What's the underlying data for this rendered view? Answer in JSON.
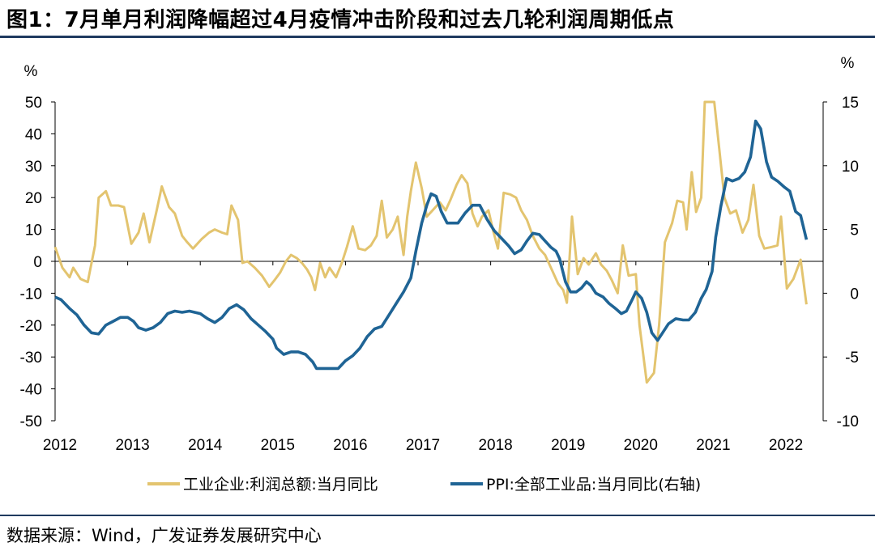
{
  "title": "图1：7月单月利润降幅超过4月疫情冲击阶段和过去几轮利润周期低点",
  "source": "数据来源：Wind，广发证券发展研究中心",
  "colors": {
    "profit": "#E3C46F",
    "ppi": "#1F6495",
    "rule": "#1f3a5f"
  },
  "chart_data": {
    "type": "line",
    "y_left": {
      "label": "%",
      "min": -50,
      "max": 50,
      "ticks": [
        "50",
        "40",
        "30",
        "20",
        "10",
        "0",
        "-10",
        "-20",
        "-30",
        "-40",
        "-50"
      ]
    },
    "y_right": {
      "label": "%",
      "min": -10,
      "max": 15,
      "ticks": [
        "15",
        "10",
        "5",
        "0",
        "-5",
        "-10"
      ]
    },
    "x_range": [
      2012.0,
      2022.58
    ],
    "x_ticks": [
      "2012",
      "2013",
      "2014",
      "2015",
      "2016",
      "2017",
      "2018",
      "2019",
      "2020",
      "2021",
      "2022"
    ],
    "series": [
      {
        "name": "工业企业:利润总额:当月同比",
        "axis": "left",
        "points": [
          [
            2012.0,
            4.5
          ],
          [
            2012.1,
            -2
          ],
          [
            2012.2,
            -5
          ],
          [
            2012.25,
            -2
          ],
          [
            2012.35,
            -5.5
          ],
          [
            2012.45,
            -6.5
          ],
          [
            2012.55,
            5
          ],
          [
            2012.6,
            20
          ],
          [
            2012.7,
            22
          ],
          [
            2012.77,
            17.5
          ],
          [
            2012.87,
            17.5
          ],
          [
            2012.95,
            17
          ],
          [
            2013.05,
            5.5
          ],
          [
            2013.15,
            9
          ],
          [
            2013.22,
            15
          ],
          [
            2013.3,
            6
          ],
          [
            2013.4,
            16
          ],
          [
            2013.47,
            23.5
          ],
          [
            2013.57,
            17
          ],
          [
            2013.65,
            15
          ],
          [
            2013.75,
            8
          ],
          [
            2013.82,
            6
          ],
          [
            2013.9,
            4
          ],
          [
            2014.02,
            7
          ],
          [
            2014.12,
            9
          ],
          [
            2014.2,
            10
          ],
          [
            2014.3,
            9
          ],
          [
            2014.37,
            8.5
          ],
          [
            2014.43,
            17.5
          ],
          [
            2014.52,
            13
          ],
          [
            2014.58,
            -0.5
          ],
          [
            2014.65,
            0
          ],
          [
            2014.75,
            -2
          ],
          [
            2014.85,
            -4.5
          ],
          [
            2014.95,
            -8
          ],
          [
            2015.02,
            -6
          ],
          [
            2015.1,
            -3.5
          ],
          [
            2015.18,
            0
          ],
          [
            2015.25,
            2
          ],
          [
            2015.33,
            1
          ],
          [
            2015.4,
            -0.5
          ],
          [
            2015.47,
            -2.5
          ],
          [
            2015.53,
            -5
          ],
          [
            2015.58,
            -9
          ],
          [
            2015.65,
            -0.5
          ],
          [
            2015.72,
            -5
          ],
          [
            2015.78,
            -2
          ],
          [
            2015.87,
            -5
          ],
          [
            2015.95,
            -0.5
          ],
          [
            2016.02,
            4.5
          ],
          [
            2016.1,
            11
          ],
          [
            2016.18,
            4
          ],
          [
            2016.27,
            3.5
          ],
          [
            2016.35,
            5
          ],
          [
            2016.43,
            8
          ],
          [
            2016.5,
            19
          ],
          [
            2016.57,
            7.5
          ],
          [
            2016.65,
            10
          ],
          [
            2016.72,
            14
          ],
          [
            2016.8,
            2
          ],
          [
            2016.85,
            14
          ],
          [
            2016.9,
            22
          ],
          [
            2016.97,
            31
          ],
          [
            2017.05,
            23
          ],
          [
            2017.12,
            14
          ],
          [
            2017.2,
            16
          ],
          [
            2017.3,
            18.5
          ],
          [
            2017.38,
            16
          ],
          [
            2017.45,
            19.5
          ],
          [
            2017.53,
            24
          ],
          [
            2017.6,
            27
          ],
          [
            2017.68,
            24.5
          ],
          [
            2017.75,
            15
          ],
          [
            2017.82,
            11
          ],
          [
            2017.88,
            14
          ],
          [
            2017.97,
            16
          ],
          [
            2018.03,
            10
          ],
          [
            2018.1,
            4
          ],
          [
            2018.18,
            21.5
          ],
          [
            2018.27,
            21
          ],
          [
            2018.35,
            20
          ],
          [
            2018.42,
            16
          ],
          [
            2018.5,
            13
          ],
          [
            2018.58,
            8
          ],
          [
            2018.67,
            4
          ],
          [
            2018.75,
            2
          ],
          [
            2018.83,
            -2
          ],
          [
            2018.93,
            -7
          ],
          [
            2019.0,
            -9
          ],
          [
            2019.05,
            -13
          ],
          [
            2019.12,
            14
          ],
          [
            2019.2,
            -4
          ],
          [
            2019.28,
            1
          ],
          [
            2019.35,
            -1
          ],
          [
            2019.45,
            2.5
          ],
          [
            2019.52,
            -1
          ],
          [
            2019.6,
            -3
          ],
          [
            2019.67,
            -6
          ],
          [
            2019.75,
            -10
          ],
          [
            2019.82,
            5
          ],
          [
            2019.9,
            -4.5
          ],
          [
            2020.0,
            -4
          ],
          [
            2020.05,
            -20
          ],
          [
            2020.15,
            -38
          ],
          [
            2020.25,
            -35
          ],
          [
            2020.32,
            -20
          ],
          [
            2020.4,
            6
          ],
          [
            2020.5,
            12
          ],
          [
            2020.57,
            19
          ],
          [
            2020.65,
            18.5
          ],
          [
            2020.7,
            10
          ],
          [
            2020.77,
            28
          ],
          [
            2020.83,
            15.5
          ],
          [
            2020.9,
            20
          ],
          [
            2020.95,
            50
          ],
          [
            2021.08,
            50
          ],
          [
            2021.15,
            35
          ],
          [
            2021.22,
            20
          ],
          [
            2021.3,
            15
          ],
          [
            2021.38,
            16
          ],
          [
            2021.47,
            9
          ],
          [
            2021.55,
            13
          ],
          [
            2021.62,
            24
          ],
          [
            2021.7,
            8
          ],
          [
            2021.77,
            4
          ],
          [
            2021.87,
            4.5
          ],
          [
            2021.95,
            5
          ],
          [
            2022.0,
            14
          ],
          [
            2022.08,
            -8.5
          ],
          [
            2022.17,
            -5.5
          ],
          [
            2022.27,
            0.5
          ],
          [
            2022.35,
            -13.5
          ]
        ]
      },
      {
        "name": "PPI:全部工业品:当月同比(右轴)",
        "axis": "right",
        "points": [
          [
            2012.0,
            -0.3
          ],
          [
            2012.08,
            -0.5
          ],
          [
            2012.2,
            -1.2
          ],
          [
            2012.3,
            -1.7
          ],
          [
            2012.4,
            -2.5
          ],
          [
            2012.5,
            -3.1
          ],
          [
            2012.6,
            -3.2
          ],
          [
            2012.7,
            -2.5
          ],
          [
            2012.8,
            -2.2
          ],
          [
            2012.9,
            -1.9
          ],
          [
            2013.0,
            -1.9
          ],
          [
            2013.08,
            -2.2
          ],
          [
            2013.15,
            -2.7
          ],
          [
            2013.25,
            -2.9
          ],
          [
            2013.35,
            -2.7
          ],
          [
            2013.45,
            -2.3
          ],
          [
            2013.55,
            -1.6
          ],
          [
            2013.65,
            -1.4
          ],
          [
            2013.75,
            -1.5
          ],
          [
            2013.85,
            -1.4
          ],
          [
            2014.0,
            -1.6
          ],
          [
            2014.1,
            -2
          ],
          [
            2014.2,
            -2.3
          ],
          [
            2014.3,
            -1.9
          ],
          [
            2014.4,
            -1.2
          ],
          [
            2014.5,
            -0.9
          ],
          [
            2014.6,
            -1.3
          ],
          [
            2014.7,
            -2
          ],
          [
            2014.8,
            -2.5
          ],
          [
            2014.9,
            -3
          ],
          [
            2015.0,
            -3.6
          ],
          [
            2015.05,
            -4.3
          ],
          [
            2015.15,
            -4.8
          ],
          [
            2015.25,
            -4.6
          ],
          [
            2015.35,
            -4.6
          ],
          [
            2015.45,
            -4.8
          ],
          [
            2015.55,
            -5.4
          ],
          [
            2015.6,
            -5.9
          ],
          [
            2015.7,
            -5.9
          ],
          [
            2015.8,
            -5.9
          ],
          [
            2015.9,
            -5.9
          ],
          [
            2016.0,
            -5.3
          ],
          [
            2016.1,
            -4.9
          ],
          [
            2016.2,
            -4.3
          ],
          [
            2016.3,
            -3.4
          ],
          [
            2016.4,
            -2.8
          ],
          [
            2016.5,
            -2.6
          ],
          [
            2016.6,
            -1.7
          ],
          [
            2016.7,
            -0.8
          ],
          [
            2016.8,
            0.1
          ],
          [
            2016.9,
            1.2
          ],
          [
            2016.97,
            3.3
          ],
          [
            2017.05,
            5.5
          ],
          [
            2017.12,
            6.9
          ],
          [
            2017.18,
            7.8
          ],
          [
            2017.25,
            7.6
          ],
          [
            2017.32,
            6.4
          ],
          [
            2017.4,
            5.5
          ],
          [
            2017.5,
            5.5
          ],
          [
            2017.55,
            5.5
          ],
          [
            2017.65,
            6.3
          ],
          [
            2017.75,
            6.9
          ],
          [
            2017.85,
            6.9
          ],
          [
            2017.95,
            5.8
          ],
          [
            2018.05,
            4.9
          ],
          [
            2018.15,
            4.3
          ],
          [
            2018.25,
            3.7
          ],
          [
            2018.33,
            3.1
          ],
          [
            2018.42,
            3.4
          ],
          [
            2018.5,
            4.1
          ],
          [
            2018.58,
            4.7
          ],
          [
            2018.67,
            4.6
          ],
          [
            2018.75,
            4.1
          ],
          [
            2018.83,
            3.6
          ],
          [
            2018.9,
            3.3
          ],
          [
            2018.95,
            2.7
          ],
          [
            2019.03,
            0.9
          ],
          [
            2019.1,
            0.1
          ],
          [
            2019.18,
            0.1
          ],
          [
            2019.25,
            0.4
          ],
          [
            2019.32,
            0.9
          ],
          [
            2019.38,
            0.6
          ],
          [
            2019.45,
            0
          ],
          [
            2019.55,
            -0.3
          ],
          [
            2019.63,
            -0.8
          ],
          [
            2019.72,
            -1.2
          ],
          [
            2019.8,
            -1.6
          ],
          [
            2019.87,
            -1.4
          ],
          [
            2019.95,
            -0.5
          ],
          [
            2020.0,
            0.1
          ],
          [
            2020.08,
            -0.4
          ],
          [
            2020.15,
            -1.5
          ],
          [
            2020.22,
            -3.1
          ],
          [
            2020.3,
            -3.7
          ],
          [
            2020.38,
            -3
          ],
          [
            2020.45,
            -2.4
          ],
          [
            2020.55,
            -2
          ],
          [
            2020.65,
            -2.1
          ],
          [
            2020.73,
            -2.1
          ],
          [
            2020.82,
            -1.5
          ],
          [
            2020.9,
            -0.4
          ],
          [
            2020.97,
            0.3
          ],
          [
            2021.05,
            1.7
          ],
          [
            2021.1,
            4.4
          ],
          [
            2021.17,
            6.8
          ],
          [
            2021.25,
            9
          ],
          [
            2021.33,
            8.8
          ],
          [
            2021.42,
            9
          ],
          [
            2021.5,
            9.5
          ],
          [
            2021.58,
            10.7
          ],
          [
            2021.65,
            13.5
          ],
          [
            2021.72,
            12.9
          ],
          [
            2021.8,
            10.3
          ],
          [
            2021.87,
            9.1
          ],
          [
            2021.95,
            8.8
          ],
          [
            2022.05,
            8.3
          ],
          [
            2022.12,
            8
          ],
          [
            2022.2,
            6.4
          ],
          [
            2022.27,
            6.1
          ],
          [
            2022.35,
            4.2
          ]
        ]
      }
    ]
  }
}
